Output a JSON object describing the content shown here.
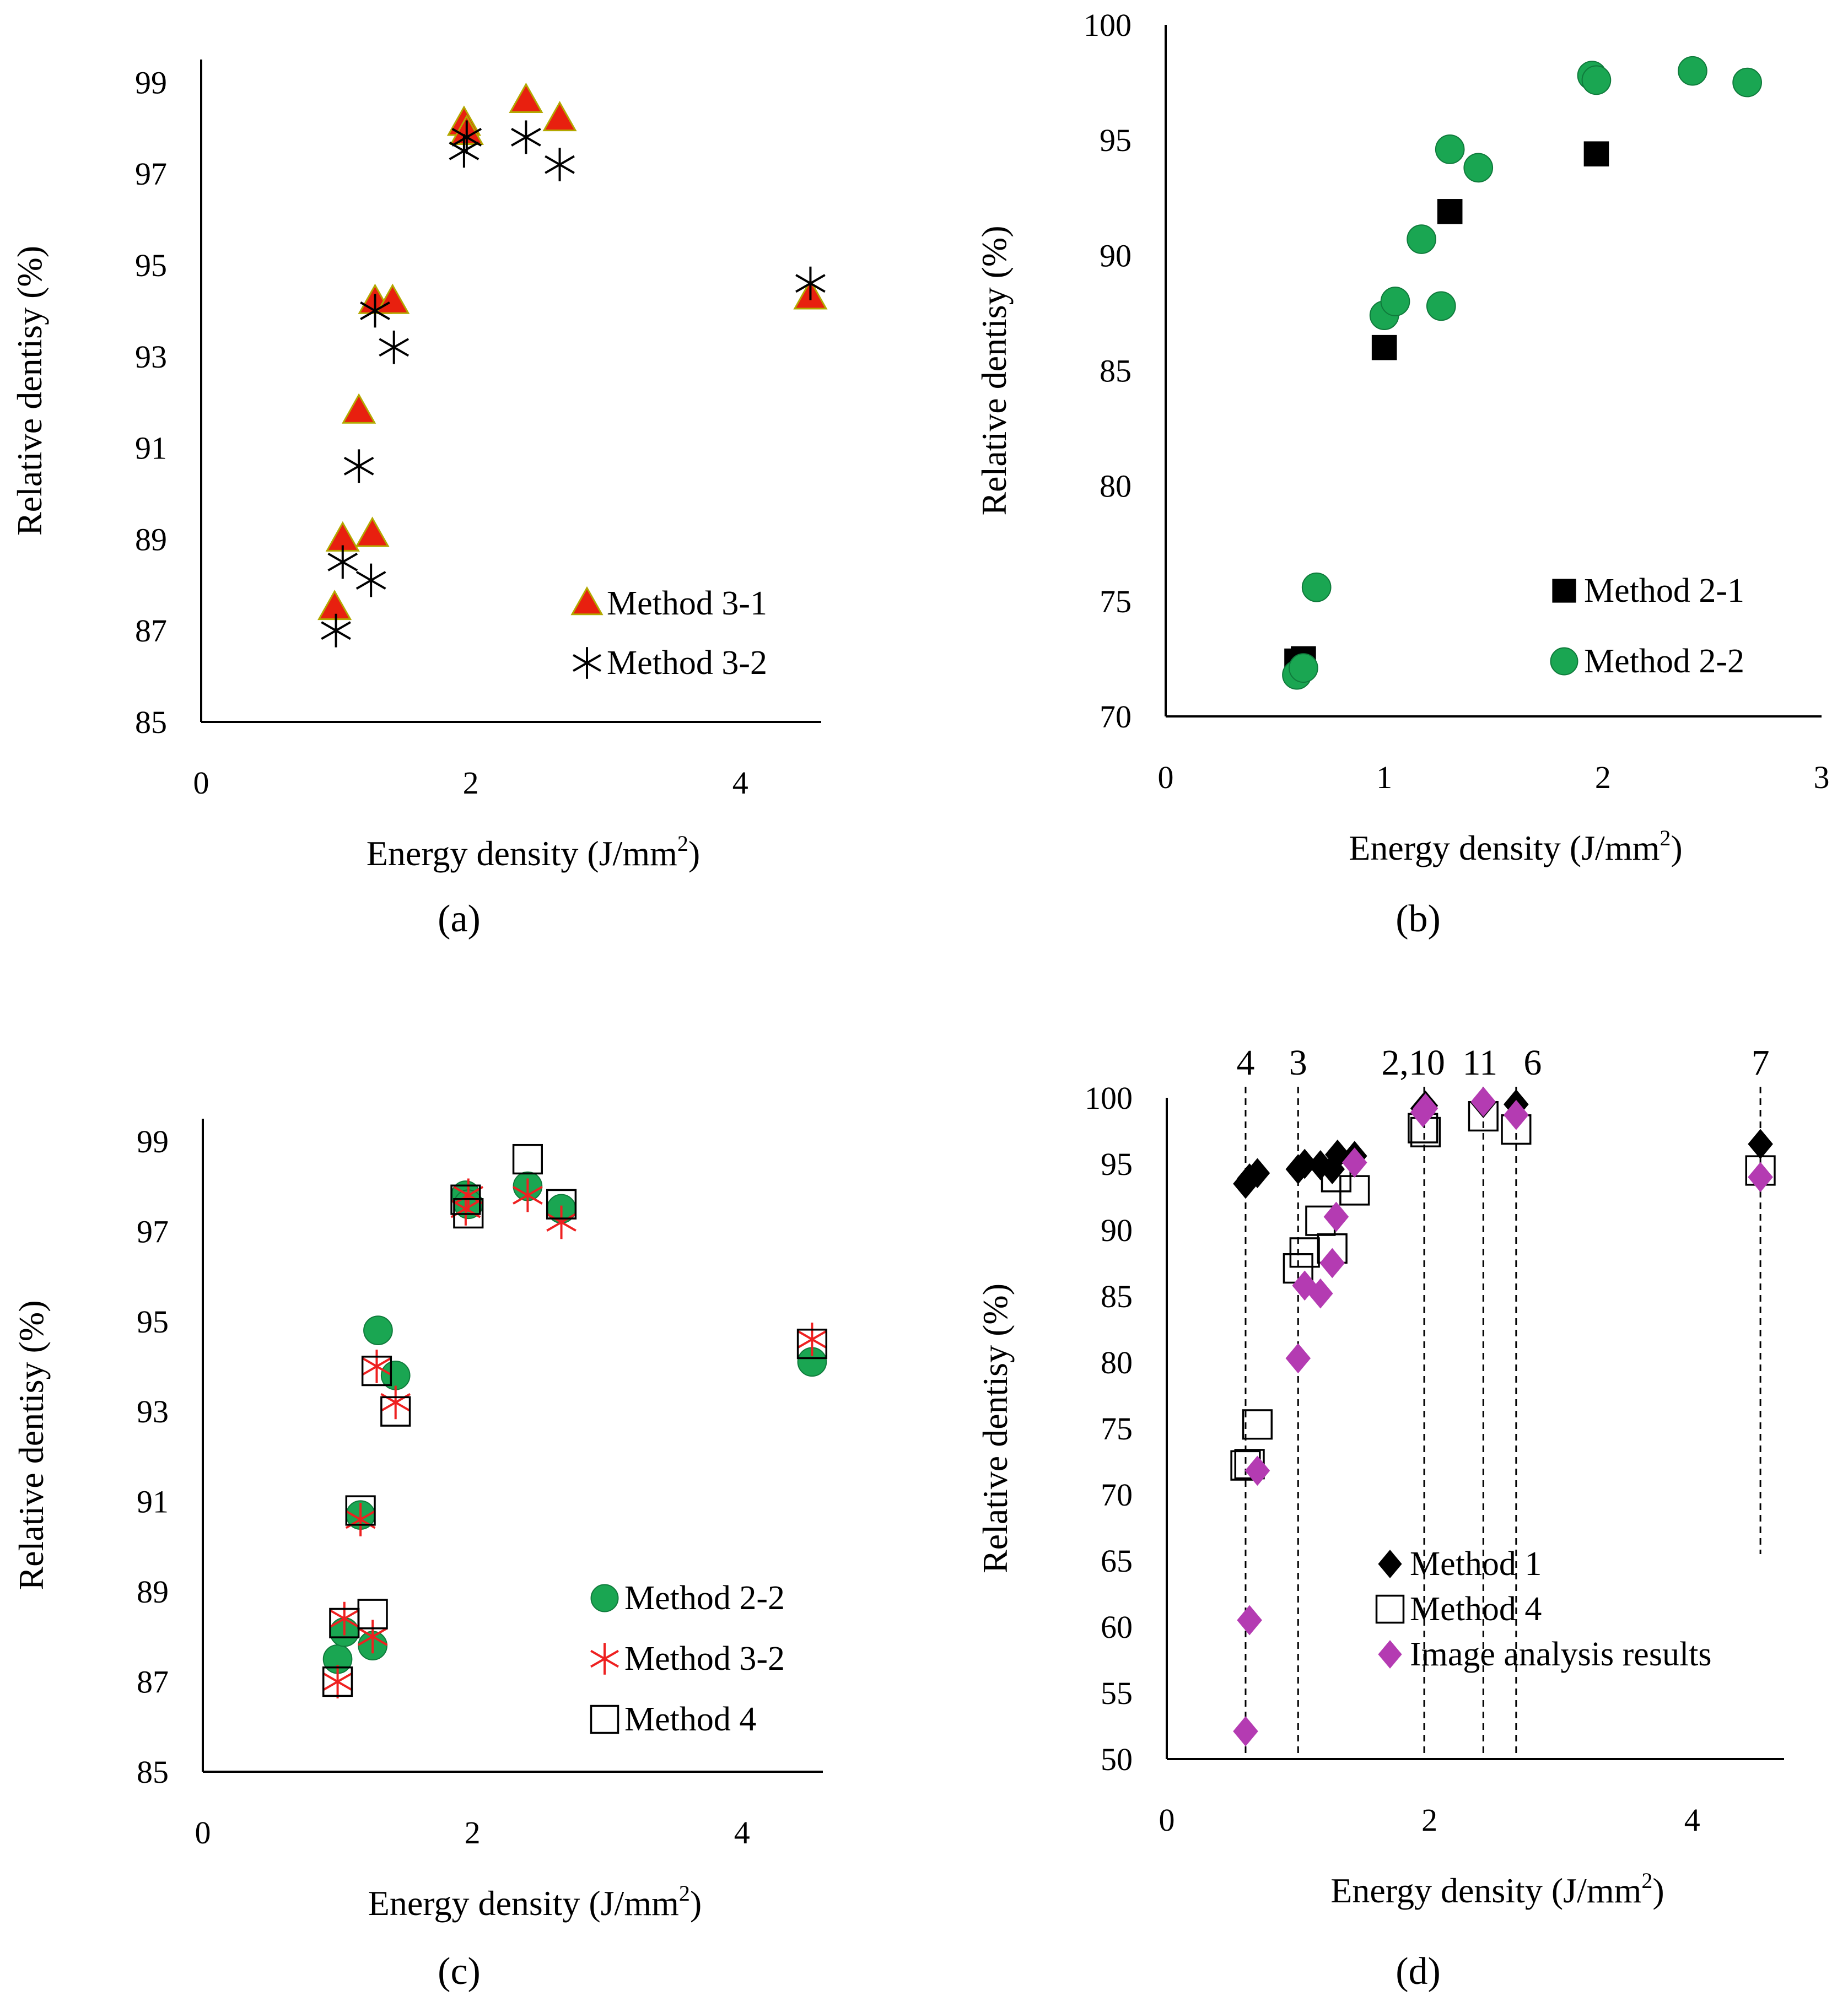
{
  "figure": {
    "panels": [
      {
        "id": "a",
        "label": "(a)",
        "legend_labels": [
          "Method 3-1",
          "Method 3-2"
        ]
      },
      {
        "id": "b",
        "label": "(b)",
        "legend_labels": [
          "Method 2-1",
          "Method 2-2"
        ]
      },
      {
        "id": "c",
        "label": "(c)",
        "legend_labels": [
          "Method 2-2",
          "Method 3-2",
          "Method 4"
        ]
      },
      {
        "id": "d",
        "label": "(d)",
        "legend_labels": [
          "Method 1",
          "Method 4",
          "Image analysis results"
        ],
        "top_labels": [
          "4",
          "3",
          "2,10",
          "11",
          "6",
          "7"
        ]
      }
    ]
  },
  "chart_data": [
    {
      "panel": "a",
      "type": "scatter",
      "title": "",
      "xlabel": "Energy density (J/mm2)",
      "ylabel": "Relative dentisy (%)",
      "xlim": [
        0,
        4.6
      ],
      "ylim": [
        85,
        99.5
      ],
      "xticks": [
        0,
        2,
        4
      ],
      "yticks": [
        85,
        87,
        89,
        91,
        93,
        95,
        97,
        99
      ],
      "legend_position": "bottom-right",
      "series": [
        {
          "name": "Method 3-1",
          "marker": "triangle",
          "color": "#e8200f",
          "edge": "#b3a800",
          "points": [
            [
              0.99,
              87.5
            ],
            [
              1.05,
              89.0
            ],
            [
              1.27,
              89.1
            ],
            [
              1.17,
              91.8
            ],
            [
              1.29,
              94.2
            ],
            [
              1.42,
              94.2
            ],
            [
              1.95,
              98.1
            ],
            [
              1.97,
              97.9
            ],
            [
              2.41,
              98.6
            ],
            [
              2.66,
              98.2
            ],
            [
              4.52,
              94.3
            ]
          ]
        },
        {
          "name": "Method 3-2",
          "marker": "asterisk",
          "color": "#000000",
          "points": [
            [
              1.0,
              87.0
            ],
            [
              1.05,
              88.5
            ],
            [
              1.26,
              88.1
            ],
            [
              1.17,
              90.6
            ],
            [
              1.29,
              94.0
            ],
            [
              1.43,
              93.2
            ],
            [
              1.95,
              97.5
            ],
            [
              1.97,
              97.8
            ],
            [
              2.41,
              97.8
            ],
            [
              2.66,
              97.2
            ],
            [
              4.52,
              94.6
            ]
          ]
        }
      ]
    },
    {
      "panel": "b",
      "type": "scatter",
      "title": "",
      "xlabel": "Energy density (J/mm2)",
      "ylabel": "Relative dentisy (%)",
      "xlim": [
        0,
        3
      ],
      "ylim": [
        70,
        100
      ],
      "xticks": [
        0,
        1,
        2,
        3
      ],
      "yticks": [
        70,
        75,
        80,
        85,
        90,
        95,
        100
      ],
      "legend_position": "bottom-right",
      "series": [
        {
          "name": "Method 2-1",
          "marker": "square-filled",
          "color": "#000000",
          "points": [
            [
              0.6,
              72.4
            ],
            [
              0.63,
              72.5
            ],
            [
              1.0,
              86.0
            ],
            [
              1.3,
              91.9
            ],
            [
              1.97,
              94.4
            ]
          ]
        },
        {
          "name": "Method 2-2",
          "marker": "circle",
          "color": "#1aa652",
          "points": [
            [
              0.6,
              71.8
            ],
            [
              0.63,
              72.1
            ],
            [
              0.69,
              75.6
            ],
            [
              1.0,
              87.4
            ],
            [
              1.05,
              88.0
            ],
            [
              1.17,
              90.7
            ],
            [
              1.26,
              87.8
            ],
            [
              1.3,
              94.6
            ],
            [
              1.43,
              93.8
            ],
            [
              1.95,
              97.8
            ],
            [
              1.97,
              97.6
            ],
            [
              2.41,
              98.0
            ],
            [
              2.66,
              97.5
            ]
          ]
        }
      ]
    },
    {
      "panel": "c",
      "type": "scatter",
      "title": "",
      "xlabel": "Energy density (J/mm2)",
      "ylabel": "Relative dentisy (%)",
      "xlim": [
        0,
        4.6
      ],
      "ylim": [
        85,
        99.5
      ],
      "xticks": [
        0,
        2,
        4
      ],
      "yticks": [
        85,
        87,
        89,
        91,
        93,
        95,
        97,
        99
      ],
      "legend_position": "bottom-right",
      "series": [
        {
          "name": "Method 2-2",
          "marker": "circle",
          "color": "#1aa652",
          "points": [
            [
              1.0,
              87.5
            ],
            [
              1.05,
              88.1
            ],
            [
              1.26,
              87.8
            ],
            [
              1.17,
              90.7
            ],
            [
              1.3,
              94.8
            ],
            [
              1.43,
              93.8
            ],
            [
              1.95,
              97.8
            ],
            [
              1.97,
              97.6
            ],
            [
              2.41,
              98.0
            ],
            [
              2.66,
              97.5
            ],
            [
              4.52,
              94.1
            ]
          ]
        },
        {
          "name": "Method 3-2",
          "marker": "asterisk",
          "color": "#ee2020",
          "points": [
            [
              1.0,
              87.0
            ],
            [
              1.05,
              88.4
            ],
            [
              1.26,
              88.0
            ],
            [
              1.17,
              90.6
            ],
            [
              1.29,
              94.0
            ],
            [
              1.43,
              93.2
            ],
            [
              1.95,
              97.5
            ],
            [
              1.97,
              97.8
            ],
            [
              2.41,
              97.8
            ],
            [
              2.66,
              97.2
            ],
            [
              4.52,
              94.6
            ]
          ]
        },
        {
          "name": "Method 4",
          "marker": "square-open",
          "color": "#000000",
          "points": [
            [
              1.0,
              87.0
            ],
            [
              1.05,
              88.3
            ],
            [
              1.26,
              88.5
            ],
            [
              1.17,
              90.8
            ],
            [
              1.29,
              93.9
            ],
            [
              1.43,
              93.0
            ],
            [
              1.95,
              97.7
            ],
            [
              1.97,
              97.4
            ],
            [
              2.41,
              98.6
            ],
            [
              2.66,
              97.6
            ],
            [
              4.52,
              94.5
            ]
          ]
        }
      ]
    },
    {
      "panel": "d",
      "type": "scatter",
      "title": "",
      "xlabel": "Energy density (J/mm2)",
      "ylabel": "Relative dentisy (%)",
      "xlim": [
        0,
        4.7
      ],
      "ylim": [
        50,
        100
      ],
      "xticks": [
        0,
        2,
        4
      ],
      "yticks": [
        50,
        55,
        60,
        65,
        70,
        75,
        80,
        85,
        90,
        95,
        100
      ],
      "legend_position": "bottom-right",
      "guides": [
        {
          "x": 0.6,
          "label": "4"
        },
        {
          "x": 1.0,
          "label": "3"
        },
        {
          "x": 1.96,
          "label": "2,10"
        },
        {
          "x": 2.41,
          "label": "11"
        },
        {
          "x": 2.66,
          "label": "6"
        },
        {
          "x": 4.52,
          "label": "7"
        }
      ],
      "series": [
        {
          "name": "Method 1",
          "marker": "diamond",
          "color": "#000000",
          "points": [
            [
              0.6,
              93.5
            ],
            [
              0.63,
              93.9
            ],
            [
              0.69,
              94.3
            ],
            [
              1.0,
              94.6
            ],
            [
              1.05,
              95.0
            ],
            [
              1.17,
              94.9
            ],
            [
              1.26,
              94.6
            ],
            [
              1.3,
              95.7
            ],
            [
              1.43,
              95.6
            ],
            [
              1.95,
              99.2
            ],
            [
              1.97,
              99.4
            ],
            [
              2.41,
              99.6
            ],
            [
              2.66,
              99.5
            ],
            [
              4.52,
              96.5
            ]
          ]
        },
        {
          "name": "Method 4",
          "marker": "square-open",
          "color": "#000000",
          "points": [
            [
              0.6,
              72.2
            ],
            [
              0.63,
              72.3
            ],
            [
              0.69,
              75.3
            ],
            [
              1.0,
              87.1
            ],
            [
              1.05,
              88.3
            ],
            [
              1.17,
              90.7
            ],
            [
              1.26,
              88.6
            ],
            [
              1.29,
              94.0
            ],
            [
              1.43,
              93.0
            ],
            [
              1.95,
              97.7
            ],
            [
              1.97,
              97.4
            ],
            [
              2.41,
              98.6
            ],
            [
              2.66,
              97.6
            ],
            [
              4.52,
              94.5
            ]
          ]
        },
        {
          "name": "Image analysis results",
          "marker": "diamond",
          "color": "#b43bb2",
          "points": [
            [
              0.6,
              52.1
            ],
            [
              0.63,
              60.5
            ],
            [
              0.69,
              71.8
            ],
            [
              1.0,
              80.3
            ],
            [
              1.05,
              85.8
            ],
            [
              1.17,
              85.2
            ],
            [
              1.26,
              87.5
            ],
            [
              1.29,
              91.0
            ],
            [
              1.43,
              95.1
            ],
            [
              1.95,
              98.9
            ],
            [
              1.97,
              99.2
            ],
            [
              2.41,
              99.7
            ],
            [
              2.66,
              98.7
            ],
            [
              4.52,
              94.0
            ]
          ]
        }
      ]
    }
  ]
}
